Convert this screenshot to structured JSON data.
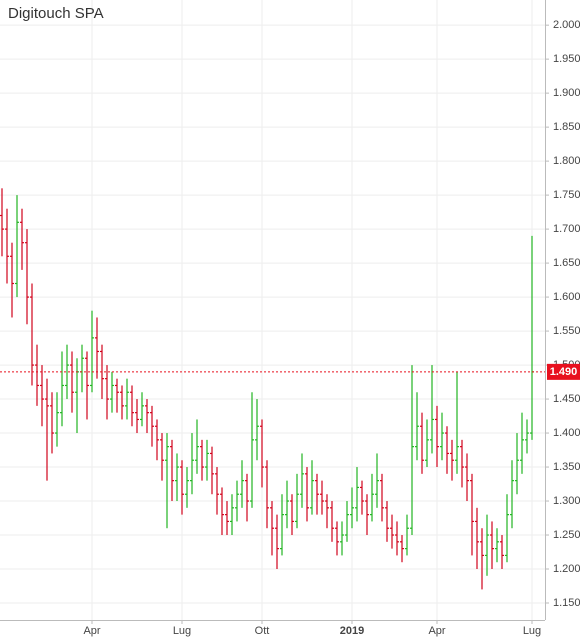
{
  "chart_data": {
    "type": "ohlc",
    "title": "Digitouch SPA",
    "categories": [
      null,
      null,
      null,
      null,
      null,
      null,
      null,
      null,
      null,
      null,
      null,
      null,
      null,
      null,
      null,
      null,
      null,
      null,
      "Apr",
      null,
      null,
      null,
      null,
      null,
      null,
      null,
      null,
      null,
      null,
      null,
      null,
      null,
      null,
      null,
      null,
      null,
      "Lug",
      null,
      null,
      null,
      null,
      null,
      null,
      null,
      null,
      null,
      null,
      null,
      null,
      null,
      null,
      null,
      "Ott",
      null,
      null,
      null,
      null,
      null,
      null,
      null,
      null,
      null,
      null,
      null,
      null,
      null,
      null,
      null,
      null,
      null,
      "2019",
      null,
      null,
      null,
      null,
      null,
      null,
      null,
      null,
      null,
      null,
      null,
      null,
      null,
      null,
      null,
      null,
      "Apr",
      null,
      null,
      null,
      null,
      null,
      null,
      null,
      null,
      null,
      null,
      null,
      null,
      null,
      null,
      null,
      null,
      null,
      null,
      "Lug"
    ],
    "open": [
      1.72,
      1.7,
      1.66,
      1.62,
      1.71,
      1.68,
      1.6,
      1.5,
      1.47,
      1.45,
      1.44,
      1.4,
      1.43,
      1.47,
      1.5,
      1.46,
      1.49,
      1.51,
      1.47,
      1.54,
      1.52,
      1.48,
      1.45,
      1.47,
      1.46,
      1.44,
      1.46,
      1.43,
      1.42,
      1.44,
      1.43,
      1.41,
      1.39,
      1.36,
      1.38,
      1.33,
      1.35,
      1.31,
      1.33,
      1.36,
      1.38,
      1.35,
      1.37,
      1.34,
      1.31,
      1.28,
      1.27,
      1.29,
      1.31,
      1.33,
      1.3,
      1.39,
      1.41,
      1.35,
      1.29,
      1.26,
      1.23,
      1.28,
      1.3,
      1.27,
      1.31,
      1.34,
      1.29,
      1.33,
      1.31,
      1.3,
      1.29,
      1.26,
      1.24,
      1.25,
      1.28,
      1.29,
      1.32,
      1.3,
      1.28,
      1.31,
      1.33,
      1.29,
      1.26,
      1.25,
      1.24,
      1.23,
      1.26,
      1.38,
      1.41,
      1.36,
      1.39,
      1.42,
      1.38,
      1.4,
      1.37,
      1.36,
      1.38,
      1.35,
      1.33,
      1.27,
      1.24,
      1.22,
      1.25,
      1.23,
      1.24,
      1.22,
      1.28,
      1.33,
      1.36,
      1.39,
      1.4
    ],
    "high": [
      1.76,
      1.73,
      1.68,
      1.75,
      1.73,
      1.7,
      1.62,
      1.53,
      1.5,
      1.48,
      1.46,
      1.46,
      1.52,
      1.53,
      1.52,
      1.51,
      1.53,
      1.52,
      1.58,
      1.57,
      1.53,
      1.5,
      1.49,
      1.48,
      1.47,
      1.48,
      1.47,
      1.45,
      1.46,
      1.45,
      1.44,
      1.42,
      1.4,
      1.4,
      1.39,
      1.37,
      1.36,
      1.35,
      1.4,
      1.42,
      1.39,
      1.39,
      1.38,
      1.35,
      1.32,
      1.3,
      1.31,
      1.33,
      1.36,
      1.34,
      1.46,
      1.45,
      1.42,
      1.36,
      1.3,
      1.28,
      1.31,
      1.33,
      1.31,
      1.34,
      1.37,
      1.35,
      1.36,
      1.34,
      1.33,
      1.31,
      1.3,
      1.27,
      1.27,
      1.3,
      1.32,
      1.35,
      1.33,
      1.31,
      1.34,
      1.37,
      1.34,
      1.3,
      1.28,
      1.27,
      1.25,
      1.28,
      1.5,
      1.46,
      1.43,
      1.42,
      1.5,
      1.44,
      1.43,
      1.41,
      1.39,
      1.49,
      1.39,
      1.37,
      1.34,
      1.29,
      1.26,
      1.28,
      1.27,
      1.26,
      1.25,
      1.31,
      1.36,
      1.4,
      1.43,
      1.42,
      1.69
    ],
    "low": [
      1.66,
      1.62,
      1.57,
      1.6,
      1.64,
      1.56,
      1.47,
      1.44,
      1.41,
      1.33,
      1.37,
      1.38,
      1.41,
      1.45,
      1.43,
      1.4,
      1.46,
      1.42,
      1.46,
      1.48,
      1.45,
      1.42,
      1.43,
      1.43,
      1.42,
      1.42,
      1.41,
      1.4,
      1.41,
      1.4,
      1.38,
      1.36,
      1.33,
      1.26,
      1.3,
      1.3,
      1.28,
      1.29,
      1.31,
      1.34,
      1.33,
      1.33,
      1.31,
      1.28,
      1.25,
      1.25,
      1.25,
      1.27,
      1.29,
      1.27,
      1.29,
      1.36,
      1.32,
      1.26,
      1.22,
      1.2,
      1.22,
      1.26,
      1.25,
      1.26,
      1.29,
      1.27,
      1.28,
      1.28,
      1.28,
      1.26,
      1.24,
      1.22,
      1.22,
      1.24,
      1.26,
      1.27,
      1.28,
      1.25,
      1.27,
      1.29,
      1.27,
      1.24,
      1.23,
      1.22,
      1.21,
      1.22,
      1.25,
      1.36,
      1.34,
      1.35,
      1.37,
      1.35,
      1.36,
      1.34,
      1.33,
      1.34,
      1.32,
      1.3,
      1.22,
      1.2,
      1.17,
      1.19,
      1.2,
      1.21,
      1.2,
      1.21,
      1.26,
      1.31,
      1.34,
      1.37,
      1.39
    ],
    "close": [
      1.7,
      1.66,
      1.62,
      1.71,
      1.68,
      1.6,
      1.5,
      1.47,
      1.45,
      1.44,
      1.4,
      1.43,
      1.47,
      1.5,
      1.46,
      1.49,
      1.51,
      1.47,
      1.54,
      1.52,
      1.48,
      1.45,
      1.47,
      1.46,
      1.44,
      1.46,
      1.43,
      1.42,
      1.44,
      1.43,
      1.41,
      1.39,
      1.36,
      1.38,
      1.33,
      1.35,
      1.31,
      1.33,
      1.36,
      1.38,
      1.35,
      1.37,
      1.34,
      1.31,
      1.28,
      1.27,
      1.29,
      1.31,
      1.33,
      1.3,
      1.39,
      1.41,
      1.35,
      1.29,
      1.26,
      1.23,
      1.28,
      1.3,
      1.27,
      1.31,
      1.34,
      1.29,
      1.33,
      1.31,
      1.3,
      1.29,
      1.26,
      1.24,
      1.25,
      1.28,
      1.29,
      1.32,
      1.3,
      1.28,
      1.31,
      1.33,
      1.29,
      1.26,
      1.25,
      1.24,
      1.23,
      1.26,
      1.38,
      1.41,
      1.36,
      1.39,
      1.42,
      1.38,
      1.4,
      1.37,
      1.36,
      1.38,
      1.35,
      1.33,
      1.27,
      1.24,
      1.22,
      1.25,
      1.23,
      1.24,
      1.22,
      1.28,
      1.33,
      1.36,
      1.39,
      1.4,
      1.49
    ],
    "up_color": "#22b422",
    "down_color": "#d0021b",
    "flat_color": "#111111",
    "ylim": [
      1.125,
      2.037
    ],
    "yticks": [
      {
        "value": 1.15,
        "label": "1.150"
      },
      {
        "value": 1.2,
        "label": "1.200"
      },
      {
        "value": 1.25,
        "label": "1.250"
      },
      {
        "value": 1.3,
        "label": "1.300"
      },
      {
        "value": 1.35,
        "label": "1.350"
      },
      {
        "value": 1.4,
        "label": "1.400"
      },
      {
        "value": 1.45,
        "label": "1.450"
      },
      {
        "value": 1.5,
        "label": "1.500"
      },
      {
        "value": 1.55,
        "label": "1.550"
      },
      {
        "value": 1.6,
        "label": "1.600"
      },
      {
        "value": 1.65,
        "label": "1.650"
      },
      {
        "value": 1.7,
        "label": "1.700"
      },
      {
        "value": 1.75,
        "label": "1.750"
      },
      {
        "value": 1.8,
        "label": "1.800"
      },
      {
        "value": 1.85,
        "label": "1.850"
      },
      {
        "value": 1.9,
        "label": "1.900"
      },
      {
        "value": 1.95,
        "label": "1.950"
      },
      {
        "value": 2.0,
        "label": "2.000"
      }
    ],
    "grid": true,
    "last": {
      "value": 1.49,
      "label": "1.490",
      "color": "#e8101e"
    }
  }
}
